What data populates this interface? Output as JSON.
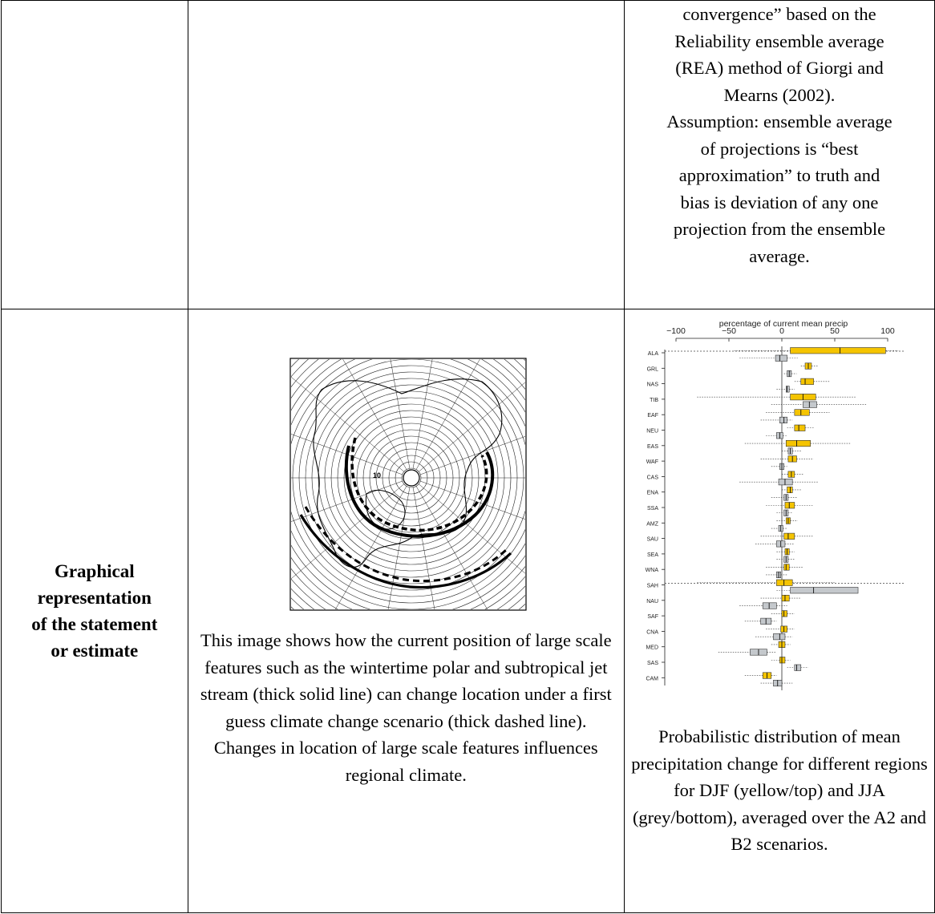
{
  "top_right_text": "convergence” based on the Reliability ensemble average (REA) method of Giorgi and Mearns (2002). Assumption: ensemble average of projections is “best approximation” to truth and bias is deviation of any one projection from the ensemble average.",
  "top_right_lines": [
    "convergence” based on the",
    "Reliability ensemble average",
    "(REA) method of Giorgi and",
    "Mearns (2002).",
    "Assumption: ensemble average",
    "of projections is “best",
    "approximation” to truth and",
    "bias is deviation of any one",
    "projection from the ensemble",
    "average."
  ],
  "row_header": {
    "line1": "Graphical",
    "line2": "representation",
    "line3": "of the statement",
    "line4": "or estimate"
  },
  "map": {
    "pole_label": "10"
  },
  "middle_caption": "This image shows how the current position of large scale features such as the wintertime polar and subtropical jet stream (thick solid line) can change location under a first guess climate change scenario (thick dashed line). Changes in location of large scale features influences regional climate.",
  "right_caption": "Probabilistic distribution of mean precipitation change for different regions for DJF (yellow/top) and JJA (grey/bottom), averaged over the A2 and B2 scenarios.",
  "colors": {
    "djf": "#f5c400",
    "jja": "#c4c8cc",
    "border": "#000000"
  },
  "chart_data": {
    "type": "boxplot",
    "title": "percentage of current mean precip",
    "xlim": [
      -100,
      100
    ],
    "xticks": [
      -100,
      -50,
      0,
      50,
      100
    ],
    "orientation": "horizontal",
    "regions": [
      "ALA",
      "GRL",
      "NAS",
      "TIB",
      "EAF",
      "NEU",
      "EAS",
      "WAF",
      "CAS",
      "ENA",
      "SSA",
      "AMZ",
      "SAU",
      "SEA",
      "WNA",
      "SAH",
      "NAU",
      "SAF",
      "CNA",
      "MED",
      "SAS",
      "CAM"
    ],
    "series": [
      {
        "name": "DJF",
        "boxes": [
          {
            "q1": 8,
            "median": 55,
            "q3": 98,
            "wlo": -45,
            "whi": 110
          },
          {
            "q1": 22,
            "median": 25,
            "q3": 28,
            "wlo": 18,
            "whi": 34
          },
          {
            "q1": 18,
            "median": 22,
            "q3": 30,
            "wlo": 12,
            "whi": 45
          },
          {
            "q1": 8,
            "median": 20,
            "q3": 32,
            "wlo": -80,
            "whi": 70
          },
          {
            "q1": 12,
            "median": 18,
            "q3": 26,
            "wlo": -15,
            "whi": 45
          },
          {
            "q1": 12,
            "median": 16,
            "q3": 22,
            "wlo": 5,
            "whi": 30
          },
          {
            "q1": 4,
            "median": 14,
            "q3": 27,
            "wlo": -35,
            "whi": 65
          },
          {
            "q1": 6,
            "median": 10,
            "q3": 14,
            "wlo": -20,
            "whi": 30
          },
          {
            "q1": 6,
            "median": 9,
            "q3": 12,
            "wlo": 0,
            "whi": 20
          },
          {
            "q1": 5,
            "median": 8,
            "q3": 10,
            "wlo": 0,
            "whi": 18
          },
          {
            "q1": 3,
            "median": 7,
            "q3": 12,
            "wlo": -15,
            "whi": 30
          },
          {
            "q1": 4,
            "median": 6,
            "q3": 8,
            "wlo": -5,
            "whi": 15
          },
          {
            "q1": 2,
            "median": 6,
            "q3": 12,
            "wlo": -20,
            "whi": 30
          },
          {
            "q1": 3,
            "median": 5,
            "q3": 7,
            "wlo": -5,
            "whi": 12
          },
          {
            "q1": 2,
            "median": 4,
            "q3": 7,
            "wlo": -15,
            "whi": 20
          },
          {
            "q1": -5,
            "median": 2,
            "q3": 10,
            "wlo": -80,
            "whi": 50
          },
          {
            "q1": 0,
            "median": 3,
            "q3": 7,
            "wlo": -20,
            "whi": 18
          },
          {
            "q1": 0,
            "median": 2,
            "q3": 5,
            "wlo": -10,
            "whi": 12
          },
          {
            "q1": -1,
            "median": 2,
            "q3": 5,
            "wlo": -15,
            "whi": 12
          },
          {
            "q1": -3,
            "median": 0,
            "q3": 3,
            "wlo": -10,
            "whi": 8
          },
          {
            "q1": -2,
            "median": 0,
            "q3": 3,
            "wlo": -10,
            "whi": 8
          },
          {
            "q1": -18,
            "median": -14,
            "q3": -10,
            "wlo": -35,
            "whi": -5
          }
        ]
      },
      {
        "name": "JJA",
        "boxes": [
          {
            "q1": -6,
            "median": -2,
            "q3": 5,
            "wlo": -40,
            "whi": 15
          },
          {
            "q1": 5,
            "median": 7,
            "q3": 9,
            "wlo": 2,
            "whi": 14
          },
          {
            "q1": 4,
            "median": 5,
            "q3": 7,
            "wlo": -5,
            "whi": 12
          },
          {
            "q1": 20,
            "median": 26,
            "q3": 33,
            "wlo": -10,
            "whi": 80
          },
          {
            "q1": -2,
            "median": 2,
            "q3": 5,
            "wlo": -20,
            "whi": 10
          },
          {
            "q1": -5,
            "median": -2,
            "q3": 1,
            "wlo": -15,
            "whi": 5
          },
          {
            "q1": 6,
            "median": 8,
            "q3": 10,
            "wlo": 0,
            "whi": 18
          },
          {
            "q1": -2,
            "median": 0,
            "q3": 2,
            "wlo": -10,
            "whi": 5
          },
          {
            "q1": -3,
            "median": 3,
            "q3": 10,
            "wlo": -40,
            "whi": 35
          },
          {
            "q1": 2,
            "median": 4,
            "q3": 6,
            "wlo": -10,
            "whi": 15
          },
          {
            "q1": 2,
            "median": 4,
            "q3": 6,
            "wlo": -5,
            "whi": 10
          },
          {
            "q1": -3,
            "median": -1,
            "q3": 1,
            "wlo": -10,
            "whi": 5
          },
          {
            "q1": -5,
            "median": -1,
            "q3": 3,
            "wlo": -25,
            "whi": 12
          },
          {
            "q1": 2,
            "median": 4,
            "q3": 6,
            "wlo": -5,
            "whi": 12
          },
          {
            "q1": -5,
            "median": -3,
            "q3": -1,
            "wlo": -15,
            "whi": 5
          },
          {
            "q1": 8,
            "median": 30,
            "q3": 72,
            "wlo": -5,
            "whi": 72
          },
          {
            "q1": -18,
            "median": -12,
            "q3": -5,
            "wlo": -40,
            "whi": 5
          },
          {
            "q1": -20,
            "median": -15,
            "q3": -10,
            "wlo": -35,
            "whi": -5
          },
          {
            "q1": -8,
            "median": -2,
            "q3": 3,
            "wlo": -25,
            "whi": 10
          },
          {
            "q1": -30,
            "median": -22,
            "q3": -14,
            "wlo": -60,
            "whi": -5
          },
          {
            "q1": 12,
            "median": 14,
            "q3": 18,
            "wlo": 5,
            "whi": 25
          },
          {
            "q1": -8,
            "median": -4,
            "q3": 0,
            "wlo": -20,
            "whi": 10
          }
        ]
      }
    ]
  }
}
